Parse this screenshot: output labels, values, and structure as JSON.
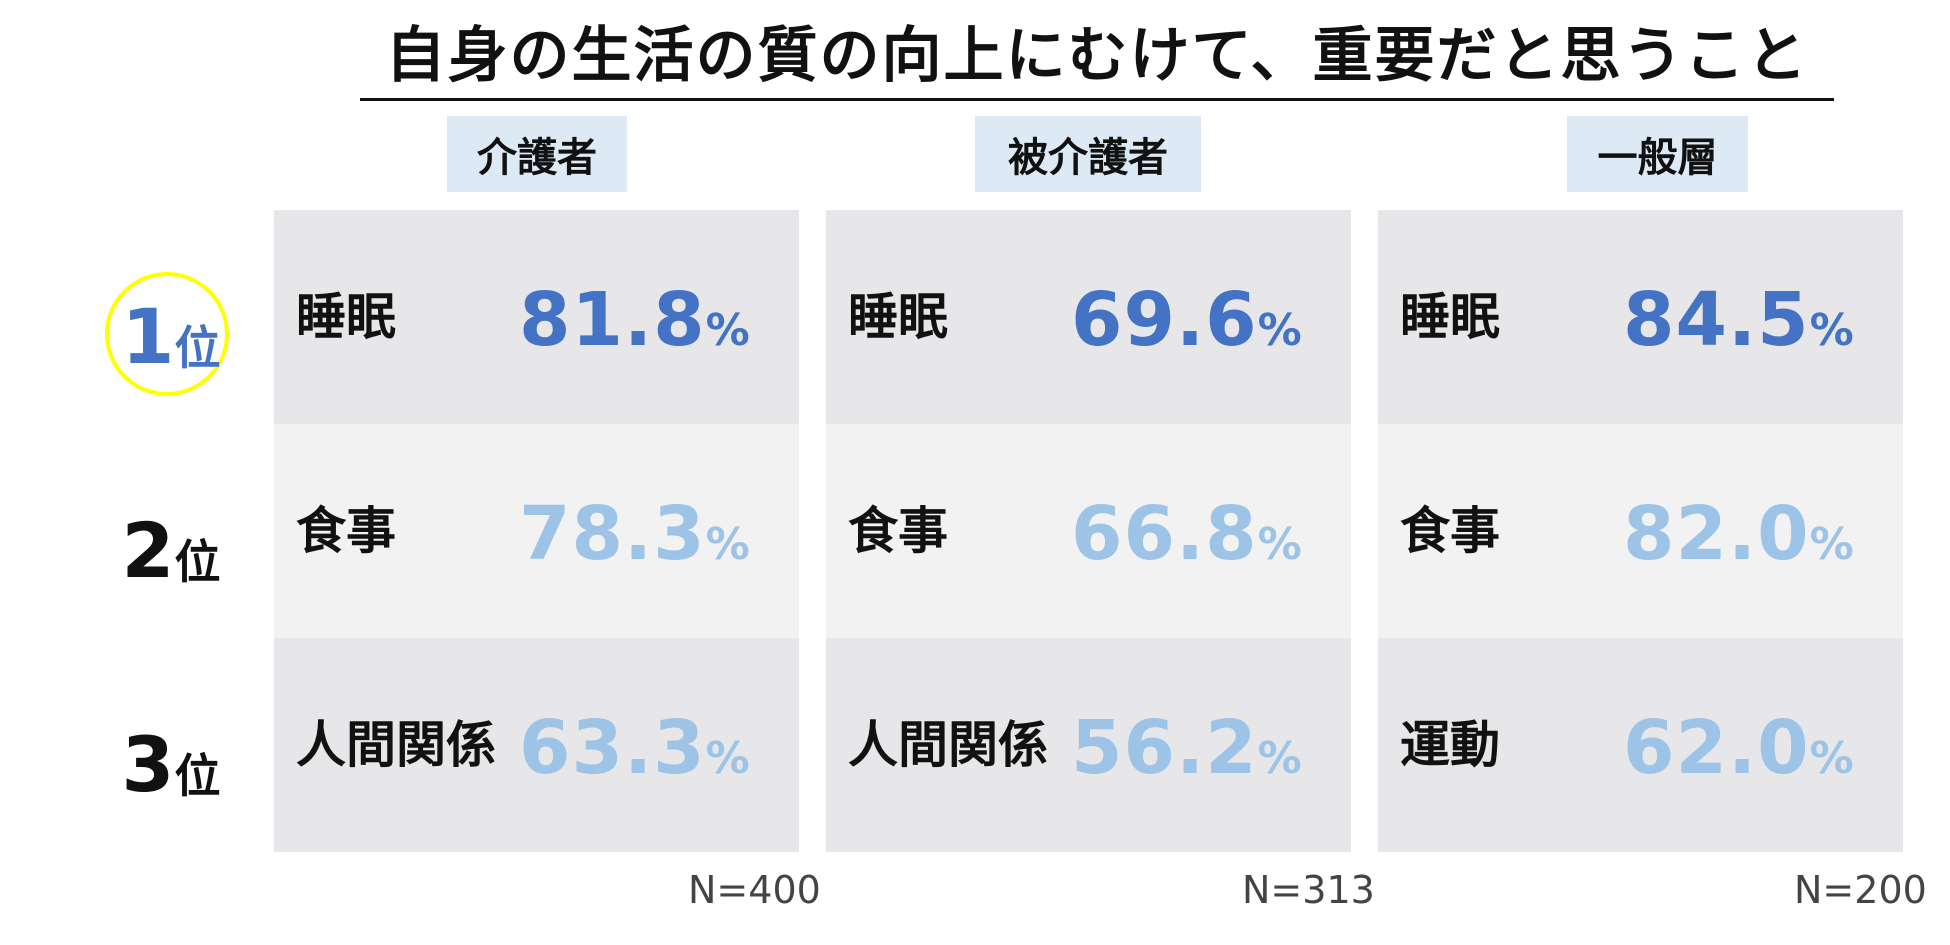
{
  "chart_data": {
    "type": "table",
    "title": "自身の生活の質の向上にむけて、重要だと思うこと",
    "rank_suffix": "位",
    "ranks": [
      "1",
      "2",
      "3"
    ],
    "percent_unit": "%",
    "groups": [
      {
        "name": "介護者",
        "n": "N=400",
        "items": [
          {
            "label": "睡眠",
            "value": "81.8"
          },
          {
            "label": "食事",
            "value": "78.3"
          },
          {
            "label": "人間関係",
            "value": "63.3"
          }
        ]
      },
      {
        "name": "被介護者",
        "n": "N=313",
        "items": [
          {
            "label": "睡眠",
            "value": "69.6"
          },
          {
            "label": "食事",
            "value": "66.8"
          },
          {
            "label": "人間関係",
            "value": "56.2"
          }
        ]
      },
      {
        "name": "一般層",
        "n": "N=200",
        "items": [
          {
            "label": "睡眠",
            "value": "84.5"
          },
          {
            "label": "食事",
            "value": "82.0"
          },
          {
            "label": "運動",
            "value": "62.0"
          }
        ]
      }
    ],
    "colors": {
      "top_value": "#4472c4",
      "other_values": "#9dc3e6",
      "header_bg": "#ddeaf6",
      "cell_dark": "#e7e7ea",
      "cell_light": "#f2f2f2",
      "highlight_circle": "#ffff00"
    }
  }
}
